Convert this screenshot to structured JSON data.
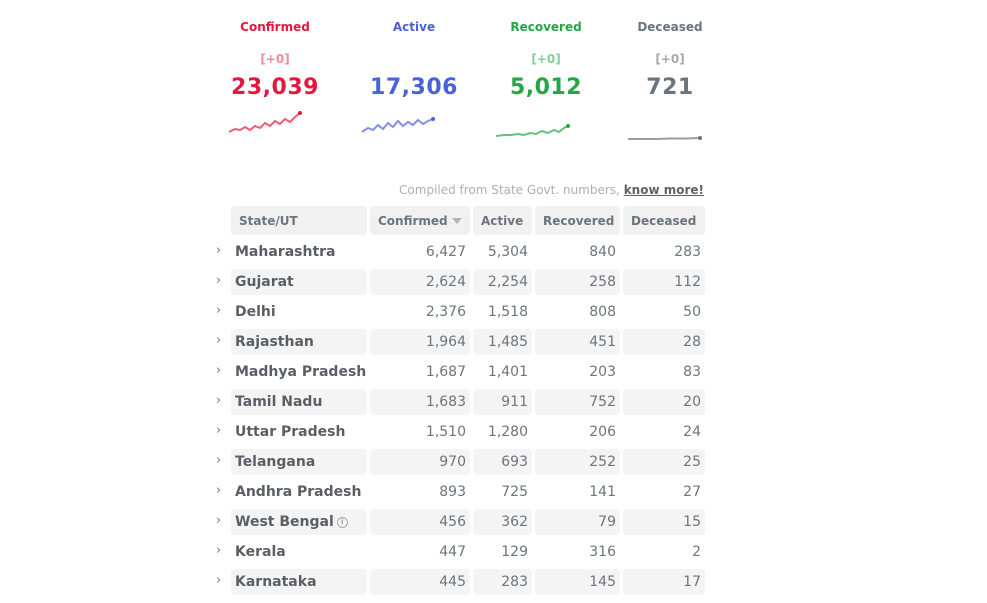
{
  "summary": [
    {
      "key": "confirmed",
      "label": "Confirmed",
      "delta": "[+0]",
      "value": "23,039",
      "color": "#e5173f"
    },
    {
      "key": "active",
      "label": "Active",
      "delta": "",
      "value": "17,306",
      "color": "#4a62d9"
    },
    {
      "key": "recovered",
      "label": "Recovered",
      "delta": "[+0]",
      "value": "5,012",
      "color": "#23a644"
    },
    {
      "key": "deceased",
      "label": "Deceased",
      "delta": "[+0]",
      "value": "721",
      "color": "#6c757d"
    }
  ],
  "compiled": {
    "text": "Compiled from State Govt. numbers,",
    "link": "know more!"
  },
  "table": {
    "headers": [
      "State/UT",
      "Confirmed",
      "Active",
      "Recovered",
      "Deceased"
    ],
    "rows": [
      {
        "state": "Maharashtra",
        "confirmed": "6,427",
        "active": "5,304",
        "recovered": "840",
        "deceased": "283"
      },
      {
        "state": "Gujarat",
        "confirmed": "2,624",
        "active": "2,254",
        "recovered": "258",
        "deceased": "112"
      },
      {
        "state": "Delhi",
        "confirmed": "2,376",
        "active": "1,518",
        "recovered": "808",
        "deceased": "50"
      },
      {
        "state": "Rajasthan",
        "confirmed": "1,964",
        "active": "1,485",
        "recovered": "451",
        "deceased": "28"
      },
      {
        "state": "Madhya Pradesh",
        "confirmed": "1,687",
        "active": "1,401",
        "recovered": "203",
        "deceased": "83"
      },
      {
        "state": "Tamil Nadu",
        "confirmed": "1,683",
        "active": "911",
        "recovered": "752",
        "deceased": "20"
      },
      {
        "state": "Uttar Pradesh",
        "confirmed": "1,510",
        "active": "1,280",
        "recovered": "206",
        "deceased": "24"
      },
      {
        "state": "Telangana",
        "confirmed": "970",
        "active": "693",
        "recovered": "252",
        "deceased": "25"
      },
      {
        "state": "Andhra Pradesh",
        "confirmed": "893",
        "active": "725",
        "recovered": "141",
        "deceased": "27"
      },
      {
        "state": "West Bengal",
        "confirmed": "456",
        "active": "362",
        "recovered": "79",
        "deceased": "15",
        "info": true
      },
      {
        "state": "Kerala",
        "confirmed": "447",
        "active": "129",
        "recovered": "316",
        "deceased": "2"
      },
      {
        "state": "Karnataka",
        "confirmed": "445",
        "active": "283",
        "recovered": "145",
        "deceased": "17"
      }
    ]
  }
}
